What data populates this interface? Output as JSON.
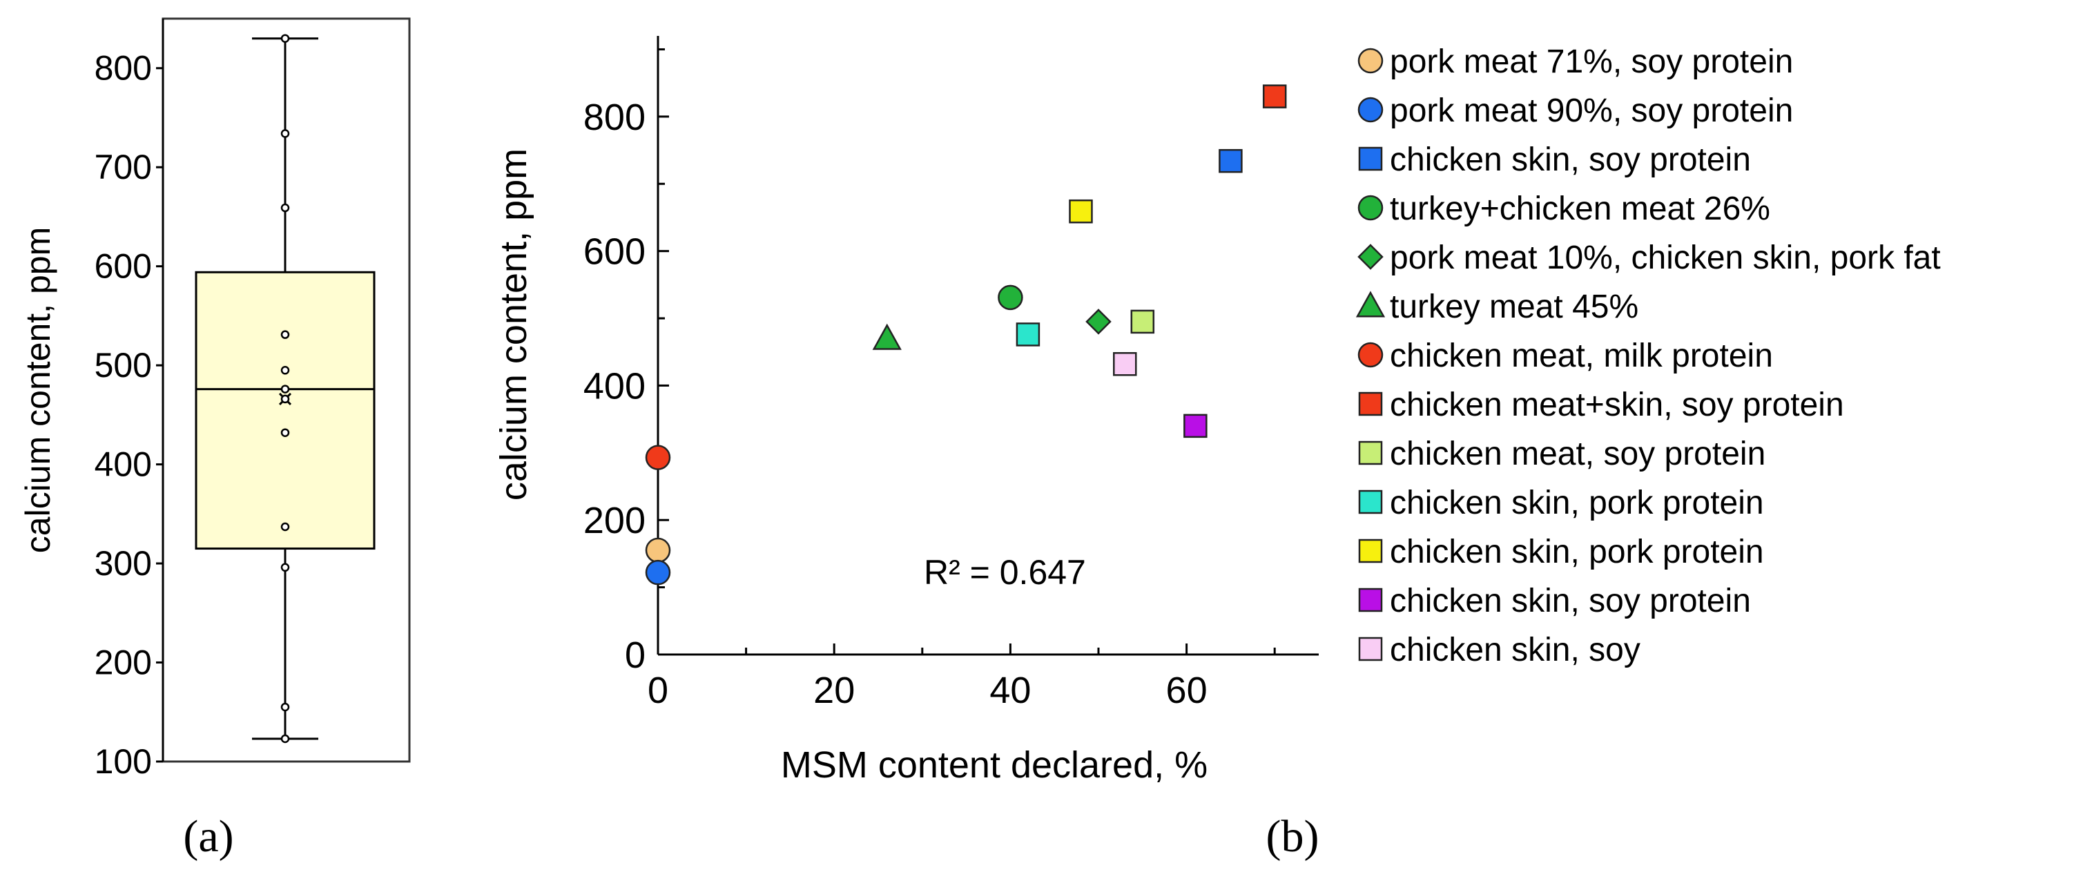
{
  "chart_data": [
    {
      "panel": "a",
      "type": "box",
      "caption": "(a)",
      "ylabel": "calcium content, ppm",
      "ylim": [
        100,
        850
      ],
      "yticks": [
        100,
        200,
        300,
        400,
        500,
        600,
        700,
        800
      ],
      "box": {
        "min": 123,
        "q1": 315,
        "median": 476,
        "q3": 594,
        "max": 830,
        "mean": 466
      },
      "points": [
        830,
        734,
        659,
        531,
        495,
        476,
        466,
        432,
        337,
        296,
        155,
        123
      ]
    },
    {
      "panel": "b",
      "type": "scatter",
      "caption": "(b)",
      "xlabel": "MSM content declared, %",
      "ylabel": "calcium content, ppm",
      "xlim": [
        0,
        75
      ],
      "ylim": [
        0,
        920
      ],
      "xticks": [
        0,
        20,
        40,
        60
      ],
      "yticks": [
        0,
        200,
        400,
        600,
        800
      ],
      "annotation": "R² = 0.647",
      "series": [
        {
          "name": "pork meat 71%, soy protein",
          "marker": "circle",
          "color": "#f7c57c",
          "x": 0,
          "y": 155
        },
        {
          "name": "pork meat 90%, soy protein",
          "marker": "circle",
          "color": "#1e6ff0",
          "x": 0,
          "y": 122
        },
        {
          "name": "chicken skin, soy protein",
          "marker": "square",
          "color": "#1e6ff0",
          "x": 65,
          "y": 734
        },
        {
          "name": "turkey+chicken meat 26%",
          "marker": "circle",
          "color": "#22b23a",
          "x": 40,
          "y": 531
        },
        {
          "name": "pork meat 10%, chicken skin, pork fat",
          "marker": "diamond",
          "color": "#22b23a",
          "x": 50,
          "y": 495
        },
        {
          "name": "turkey meat 45%",
          "marker": "triangle",
          "color": "#22b23a",
          "x": 26,
          "y": 470
        },
        {
          "name": "chicken meat, milk protein",
          "marker": "circle",
          "color": "#f03a1a",
          "x": 0,
          "y": 293
        },
        {
          "name": "chicken meat+skin, soy protein",
          "marker": "square",
          "color": "#f03a1a",
          "x": 70,
          "y": 830
        },
        {
          "name": "chicken meat, soy protein",
          "marker": "square",
          "color": "#c7ee76",
          "x": 55,
          "y": 495
        },
        {
          "name": "chicken skin, pork protein",
          "marker": "square",
          "color": "#2be5cc",
          "x": 42,
          "y": 476
        },
        {
          "name": "chicken skin, pork protein",
          "marker": "square",
          "color": "#f7f00e",
          "x": 48,
          "y": 659
        },
        {
          "name": "chicken skin, soy protein",
          "marker": "square",
          "color": "#b90fe6",
          "x": 61,
          "y": 340
        },
        {
          "name": "chicken skin, soy",
          "marker": "square",
          "color": "#f9cdf4",
          "x": 53,
          "y": 432
        }
      ]
    }
  ]
}
